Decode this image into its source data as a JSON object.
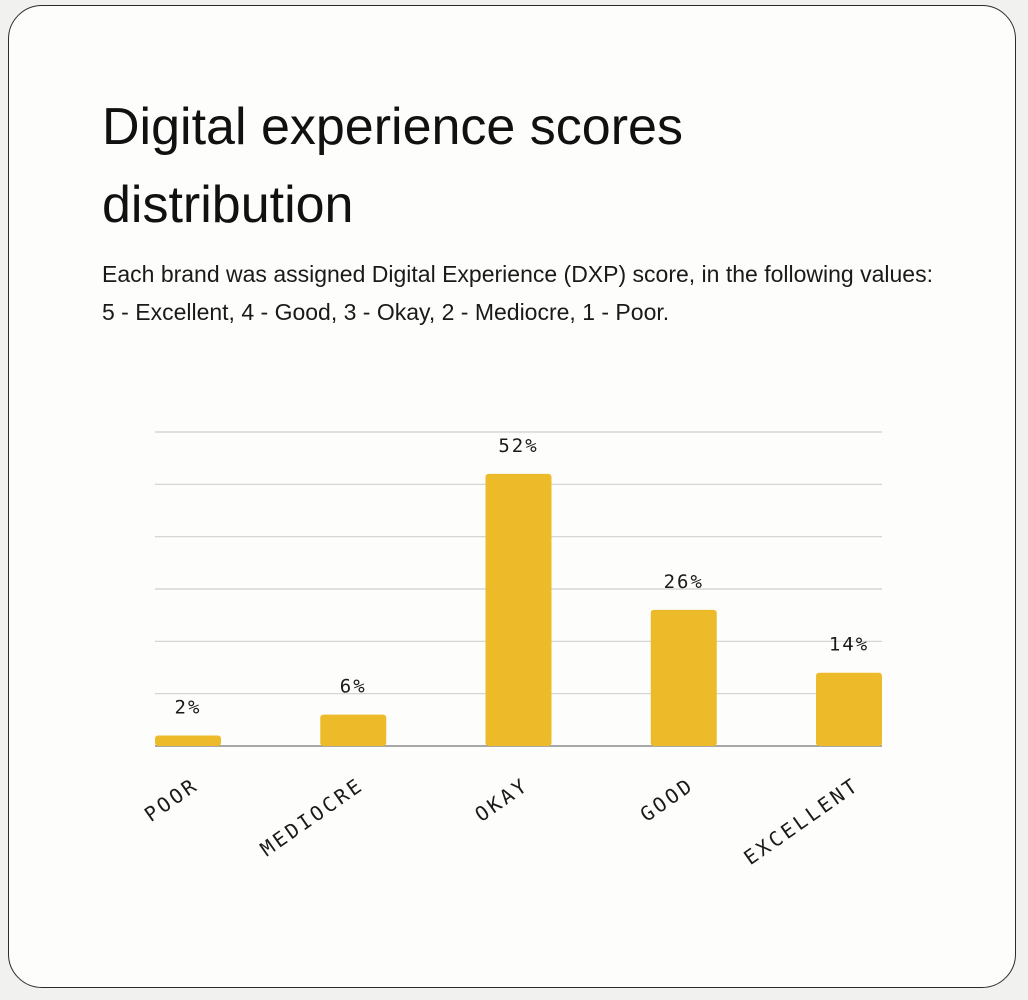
{
  "chart_data": {
    "type": "bar",
    "title": "Digital experience scores distribution",
    "subtitle": "Each brand was assigned Digital Experience (DXP) score, in the following values: 5 - Excellent, 4 - Good, 3 - Okay, 2 - Mediocre, 1 - Poor.",
    "categories": [
      "POOR",
      "MEDIOCRE",
      "OKAY",
      "GOOD",
      "EXCELLENT"
    ],
    "values": [
      2,
      6,
      52,
      26,
      14
    ],
    "data_labels": [
      "2%",
      "6%",
      "52%",
      "26%",
      "14%"
    ],
    "ylim": [
      0,
      60
    ],
    "xlabel": "",
    "ylabel": "",
    "grid": true,
    "bar_color": "#edbb2a"
  }
}
